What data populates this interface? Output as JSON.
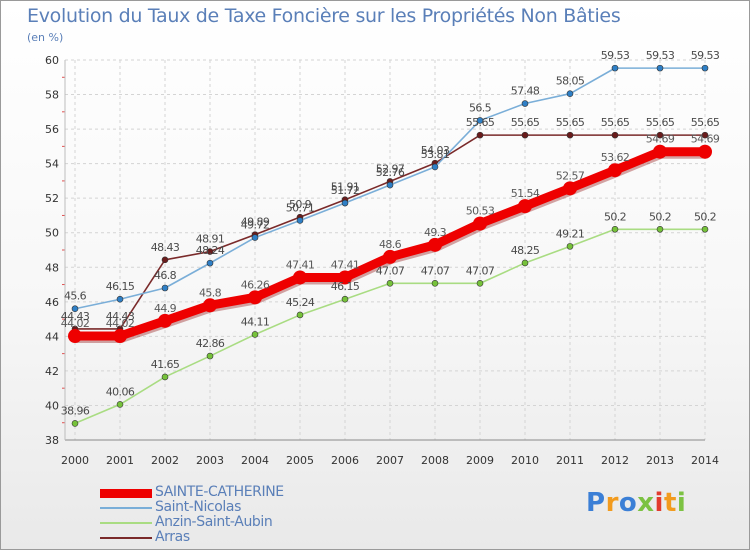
{
  "title": "Evolution du Taux de Taxe Foncière sur les Propriétés Non Bâties",
  "subtitle": "(en %)",
  "brand": {
    "letters": [
      {
        "ch": "P",
        "color": "#3b7fd6"
      },
      {
        "ch": "r",
        "color": "#f29b1e"
      },
      {
        "ch": "o",
        "color": "#3b7fd6"
      },
      {
        "ch": "x",
        "color": "#7cc242"
      },
      {
        "ch": "i",
        "color": "#e23b2e"
      },
      {
        "ch": "t",
        "color": "#f29b1e"
      },
      {
        "ch": "i",
        "color": "#7cc242"
      }
    ]
  },
  "chart_data": {
    "type": "line",
    "title": "Evolution du Taux de Taxe Foncière sur les Propriétés Non Bâties",
    "ylabel": "(en %)",
    "xlabel": "",
    "ylim": [
      38,
      60
    ],
    "yticks": [
      38,
      40,
      42,
      44,
      46,
      48,
      50,
      52,
      54,
      56,
      58,
      60
    ],
    "grid": true,
    "legend_position": "bottom-left",
    "x": [
      "2000",
      "2001",
      "2002",
      "2003",
      "2004",
      "2005",
      "2006",
      "2007",
      "2008",
      "2009",
      "2010",
      "2011",
      "2012",
      "2013",
      "2014"
    ],
    "series": [
      {
        "name": "SAINTE-CATHERINE",
        "color": "#ee0000",
        "markerColor": "#ee0000",
        "width": 9,
        "marker": 7,
        "labelColor": "#5a5a5a",
        "labels": [
          "44.02",
          "44.02",
          "44.9",
          "45.8",
          "46.26",
          "47.41",
          "47.41",
          "48.6",
          "49.3",
          "50.53",
          "51.54",
          "52.57",
          "53.62",
          "54.69",
          "54.69"
        ],
        "values": [
          44.02,
          44.02,
          44.9,
          45.8,
          46.26,
          47.41,
          47.41,
          48.6,
          49.3,
          50.53,
          51.54,
          52.57,
          53.62,
          54.69,
          54.69
        ]
      },
      {
        "name": "Saint-Nicolas",
        "color": "#7aaed8",
        "markerColor": "#2e7fc6",
        "width": 1.6,
        "marker": 3,
        "labelColor": "#4a4a4a",
        "labels": [
          "45.6",
          "46.15",
          "46.8",
          "48.24",
          "49.72",
          "50.71",
          "51.72",
          "52.76",
          "53.81",
          "56.5",
          "57.48",
          "58.05",
          "59.53",
          "59.53",
          "59.53"
        ],
        "values": [
          45.6,
          46.15,
          46.8,
          48.24,
          49.72,
          50.71,
          51.72,
          52.76,
          53.81,
          56.5,
          57.48,
          58.05,
          59.53,
          59.53,
          59.53
        ]
      },
      {
        "name": "Anzin-Saint-Aubin",
        "color": "#a9dc82",
        "markerColor": "#76c23a",
        "width": 1.6,
        "marker": 3,
        "labelColor": "#4a4a4a",
        "labels": [
          "38.96",
          "40.06",
          "41.65",
          "42.86",
          "44.11",
          "45.24",
          "46.15",
          "47.07",
          "47.07",
          "47.07",
          "48.25",
          "49.21",
          "50.2",
          "50.2",
          "50.2"
        ],
        "values": [
          38.96,
          40.06,
          41.65,
          42.86,
          44.11,
          45.24,
          46.15,
          47.07,
          47.07,
          47.07,
          48.25,
          49.21,
          50.2,
          50.2,
          50.2
        ]
      },
      {
        "name": "Arras",
        "color": "#7a2a2a",
        "markerColor": "#6a1c1c",
        "width": 1.6,
        "marker": 3,
        "labelColor": "#4a4a4a",
        "labels": [
          "44.43",
          "44.43",
          "48.43",
          "48.91",
          "49.89",
          "50.9",
          "51.91",
          "52.97",
          "54.03",
          "55.65",
          "55.65",
          "55.65",
          "55.65",
          "55.65",
          "55.65"
        ],
        "values": [
          44.43,
          44.43,
          48.43,
          48.91,
          49.89,
          50.9,
          51.91,
          52.97,
          54.03,
          55.65,
          55.65,
          55.65,
          55.65,
          55.65,
          55.65
        ]
      }
    ]
  }
}
